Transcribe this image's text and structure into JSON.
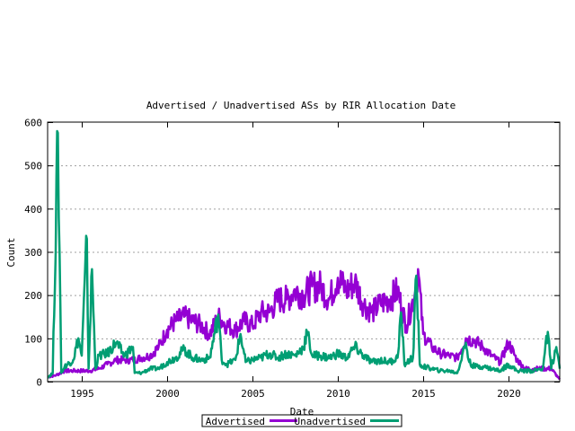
{
  "chart_data": {
    "type": "line",
    "title": "Advertised / Unadvertised ASs by RIR Allocation Date",
    "xlabel": "Date",
    "ylabel": "Count",
    "xlim": [
      1993,
      2023
    ],
    "ylim": [
      0,
      600
    ],
    "x_ticks": [
      1995,
      2000,
      2005,
      2010,
      2015,
      2020
    ],
    "y_ticks": [
      0,
      100,
      200,
      300,
      400,
      500,
      600
    ],
    "grid": "horizontal dotted",
    "legend_placement": "bottom",
    "series": [
      {
        "name": "Advertised",
        "color": "#9400d3",
        "x": [
          1993.0,
          1993.5,
          1994.0,
          1994.5,
          1995.0,
          1995.5,
          1996.0,
          1996.5,
          1997.0,
          1997.5,
          1998.0,
          1998.5,
          1999.0,
          1999.5,
          2000.0,
          2000.5,
          2001.0,
          2001.5,
          2002.0,
          2002.5,
          2003.0,
          2003.5,
          2004.0,
          2004.5,
          2005.0,
          2005.5,
          2006.0,
          2006.5,
          2007.0,
          2007.5,
          2008.0,
          2008.5,
          2009.0,
          2009.5,
          2010.0,
          2010.5,
          2011.0,
          2011.5,
          2012.0,
          2012.5,
          2013.0,
          2013.5,
          2014.0,
          2014.5,
          2014.7,
          2015.0,
          2015.5,
          2016.0,
          2016.5,
          2017.0,
          2017.5,
          2018.0,
          2018.5,
          2019.0,
          2019.5,
          2020.0,
          2020.5,
          2021.0,
          2021.5,
          2022.0,
          2022.5,
          2023.0
        ],
        "y": [
          10,
          15,
          25,
          25,
          25,
          25,
          30,
          40,
          50,
          50,
          50,
          55,
          60,
          80,
          120,
          140,
          150,
          140,
          130,
          110,
          150,
          130,
          120,
          140,
          130,
          160,
          160,
          190,
          190,
          210,
          200,
          220,
          220,
          190,
          240,
          210,
          230,
          180,
          160,
          180,
          190,
          210,
          130,
          200,
          260,
          110,
          80,
          65,
          60,
          55,
          100,
          95,
          80,
          60,
          45,
          90,
          50,
          30,
          30,
          30,
          30,
          5
        ]
      },
      {
        "name": "Unadvertised",
        "color": "#009e73",
        "x": [
          1993.0,
          1993.3,
          1993.6,
          1993.7,
          1993.8,
          1994.0,
          1994.5,
          1994.8,
          1995.0,
          1995.3,
          1995.4,
          1995.6,
          1995.8,
          1996.0,
          1996.5,
          1997.0,
          1997.5,
          1998.0,
          1998.1,
          1998.5,
          1999.0,
          1999.5,
          2000.0,
          2000.5,
          2001.0,
          2001.5,
          2002.0,
          2002.5,
          2003.0,
          2003.2,
          2003.5,
          2004.0,
          2004.3,
          2004.6,
          2005.0,
          2005.5,
          2006.0,
          2006.5,
          2007.0,
          2007.5,
          2008.0,
          2008.2,
          2008.5,
          2009.0,
          2009.5,
          2010.0,
          2010.5,
          2011.0,
          2011.5,
          2012.0,
          2012.5,
          2013.0,
          2013.5,
          2013.7,
          2013.9,
          2014.4,
          2014.6,
          2014.8,
          2015.0,
          2015.5,
          2016.0,
          2016.5,
          2017.0,
          2017.5,
          2017.7,
          2018.0,
          2018.5,
          2019.0,
          2019.5,
          2020.0,
          2020.5,
          2021.0,
          2021.5,
          2022.0,
          2022.3,
          2022.5,
          2022.8,
          2023.0
        ],
        "y": [
          10,
          20,
          575,
          300,
          20,
          35,
          50,
          100,
          60,
          330,
          30,
          260,
          30,
          60,
          65,
          90,
          60,
          80,
          20,
          20,
          30,
          30,
          45,
          55,
          75,
          55,
          50,
          55,
          155,
          50,
          40,
          50,
          110,
          45,
          50,
          55,
          65,
          55,
          65,
          60,
          80,
          115,
          60,
          60,
          55,
          65,
          55,
          80,
          60,
          45,
          50,
          45,
          55,
          160,
          40,
          55,
          245,
          40,
          35,
          30,
          25,
          25,
          20,
          90,
          45,
          35,
          35,
          30,
          25,
          40,
          25,
          25,
          25,
          30,
          115,
          30,
          80,
          30
        ]
      }
    ]
  }
}
